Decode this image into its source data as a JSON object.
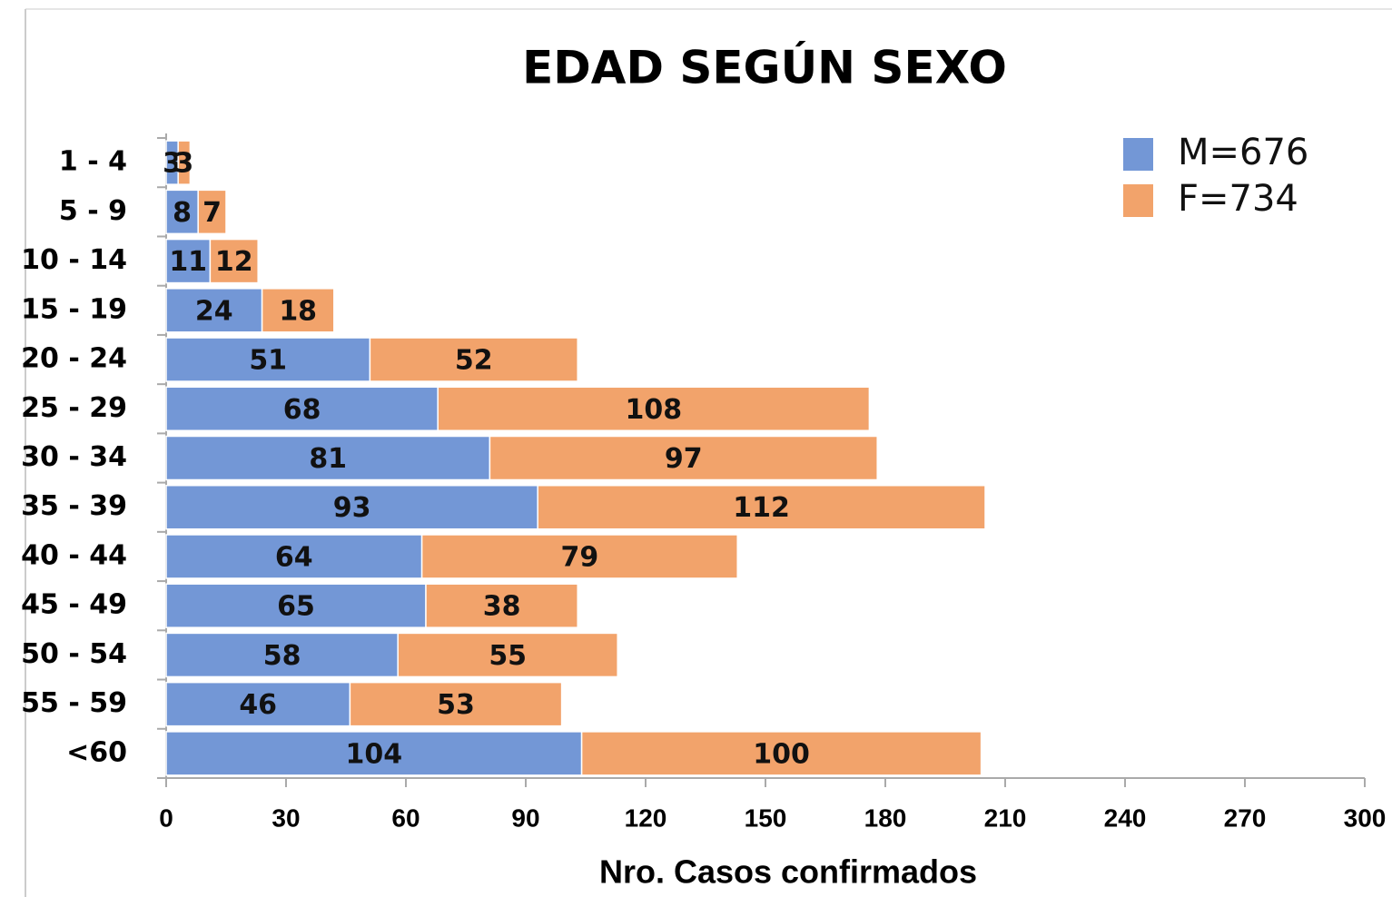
{
  "chart_data": {
    "type": "bar",
    "orientation": "horizontal",
    "stacked": true,
    "title": "EDAD SEGÚN SEXO",
    "x_label": "Nro. Casos confirmados",
    "categories": [
      "1 - 4",
      "5 - 9",
      "10 - 14",
      "15 - 19",
      "20 - 24",
      "25 - 29",
      "30 - 34",
      "35 - 39",
      "40 - 44",
      "45 - 49",
      "50 - 54",
      "55 - 59",
      "<60"
    ],
    "series": [
      {
        "name": "M=676",
        "color": "#7397d6",
        "values": [
          3,
          8,
          11,
          24,
          51,
          68,
          81,
          93,
          64,
          65,
          58,
          46,
          104
        ]
      },
      {
        "name": "F=734",
        "color": "#f2a36b",
        "values": [
          3,
          7,
          12,
          18,
          52,
          108,
          97,
          112,
          79,
          38,
          55,
          53,
          100
        ]
      }
    ],
    "xlim": [
      0,
      300
    ],
    "xticks": [
      0,
      30,
      60,
      90,
      120,
      150,
      180,
      210,
      240,
      270,
      300
    ],
    "legend": "top-right"
  }
}
